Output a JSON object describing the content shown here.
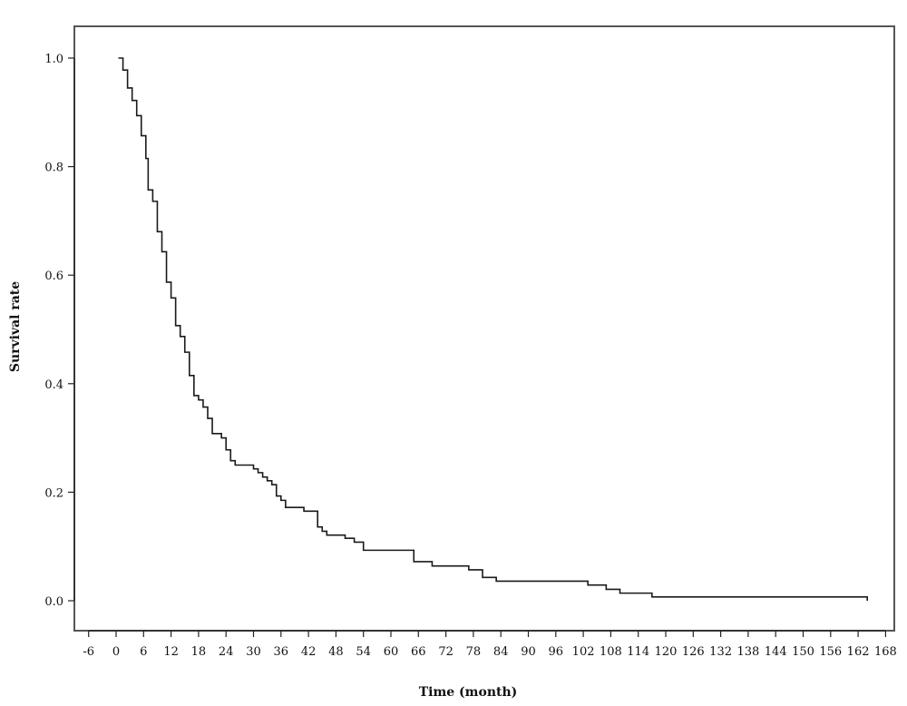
{
  "chart_data": {
    "type": "line",
    "title": "",
    "xlabel": "Time (month)",
    "ylabel": "Survival rate",
    "xlim": [
      -10,
      170
    ],
    "ylim": [
      -0.05,
      1.07
    ],
    "x_ticks": [
      -6,
      0,
      6,
      12,
      18,
      24,
      30,
      36,
      42,
      48,
      54,
      60,
      66,
      72,
      78,
      84,
      90,
      96,
      102,
      108,
      114,
      120,
      126,
      132,
      138,
      144,
      150,
      156,
      162,
      168
    ],
    "y_ticks": [
      0.0,
      0.2,
      0.4,
      0.6,
      0.8,
      1.0
    ],
    "y_tick_labels": [
      "0.0",
      "0.2",
      "0.4",
      "0.6",
      "0.8",
      "1.0"
    ],
    "grid": false,
    "legend": "none",
    "colors": {
      "line": "#1a1a1a",
      "frame": "#555555"
    },
    "series": [
      {
        "step": "post",
        "x": [
          0.5,
          1.5,
          2.5,
          3.5,
          4.5,
          5.5,
          6.5,
          7.0,
          8.0,
          9.0,
          10.0,
          11.0,
          12.0,
          13.0,
          14.0,
          15.0,
          16.0,
          17.0,
          18.0,
          19.0,
          20.0,
          21.0,
          22.0,
          23.0,
          24.0,
          25.0,
          26.0,
          30.0,
          31.0,
          32.0,
          33.0,
          34.0,
          35.0,
          36.0,
          37.0,
          38.0,
          41.0,
          44.0,
          45.0,
          46.0,
          50.0,
          52.0,
          54.0,
          65.0,
          69.0,
          77.0,
          80.0,
          83.0,
          103.0,
          107.0,
          110.0,
          117.0,
          164.0
        ],
        "y": [
          1.0,
          0.978,
          0.945,
          0.922,
          0.894,
          0.857,
          0.815,
          0.757,
          0.736,
          0.68,
          0.643,
          0.587,
          0.558,
          0.507,
          0.487,
          0.458,
          0.415,
          0.378,
          0.37,
          0.357,
          0.336,
          0.308,
          0.308,
          0.3,
          0.278,
          0.258,
          0.25,
          0.243,
          0.236,
          0.228,
          0.221,
          0.214,
          0.193,
          0.185,
          0.172,
          0.172,
          0.165,
          0.136,
          0.128,
          0.121,
          0.115,
          0.108,
          0.093,
          0.072,
          0.064,
          0.057,
          0.043,
          0.036,
          0.029,
          0.021,
          0.014,
          0.007,
          0.0
        ]
      }
    ]
  }
}
